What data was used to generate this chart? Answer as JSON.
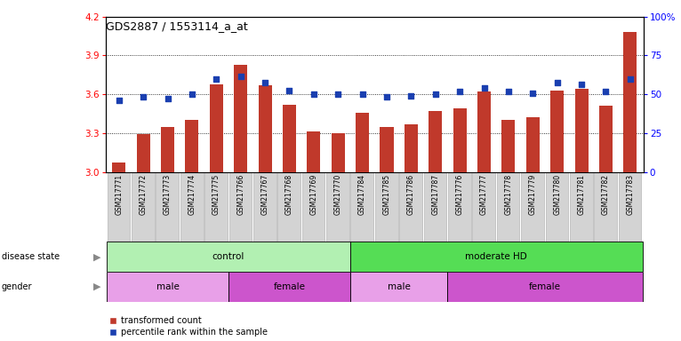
{
  "title": "GDS2887 / 1553114_a_at",
  "samples": [
    "GSM217771",
    "GSM217772",
    "GSM217773",
    "GSM217774",
    "GSM217775",
    "GSM217766",
    "GSM217767",
    "GSM217768",
    "GSM217769",
    "GSM217770",
    "GSM217784",
    "GSM217785",
    "GSM217786",
    "GSM217787",
    "GSM217776",
    "GSM217777",
    "GSM217778",
    "GSM217779",
    "GSM217780",
    "GSM217781",
    "GSM217782",
    "GSM217783"
  ],
  "bar_values": [
    3.07,
    3.29,
    3.35,
    3.4,
    3.68,
    3.83,
    3.67,
    3.52,
    3.31,
    3.3,
    3.46,
    3.35,
    3.37,
    3.47,
    3.49,
    3.62,
    3.4,
    3.42,
    3.63,
    3.64,
    3.51,
    4.08
  ],
  "blue_values": [
    3.55,
    3.58,
    3.57,
    3.6,
    3.72,
    3.74,
    3.69,
    3.63,
    3.6,
    3.6,
    3.6,
    3.58,
    3.59,
    3.6,
    3.62,
    3.65,
    3.62,
    3.61,
    3.69,
    3.68,
    3.62,
    3.72
  ],
  "ylim_left": [
    3.0,
    4.2
  ],
  "ylim_right": [
    0,
    100
  ],
  "yticks_left": [
    3.0,
    3.3,
    3.6,
    3.9,
    4.2
  ],
  "yticks_right": [
    0,
    25,
    50,
    75,
    100
  ],
  "ytick_labels_right": [
    "0",
    "25",
    "50",
    "75",
    "100%"
  ],
  "bar_color": "#c0392b",
  "blue_color": "#1a3fb0",
  "bar_base": 3.0,
  "grid_lines": [
    3.3,
    3.6,
    3.9
  ],
  "disease_state_groups": [
    {
      "label": "control",
      "start": 0,
      "end": 10,
      "color": "#b2f0b2"
    },
    {
      "label": "moderate HD",
      "start": 10,
      "end": 22,
      "color": "#55dd55"
    }
  ],
  "gender_groups": [
    {
      "label": "male",
      "start": 0,
      "end": 5,
      "color": "#e8a0e8"
    },
    {
      "label": "female",
      "start": 5,
      "end": 10,
      "color": "#cc55cc"
    },
    {
      "label": "male",
      "start": 10,
      "end": 14,
      "color": "#e8a0e8"
    },
    {
      "label": "female",
      "start": 14,
      "end": 22,
      "color": "#cc55cc"
    }
  ],
  "disease_state_label": "disease state",
  "gender_label": "gender",
  "legend_labels": [
    "transformed count",
    "percentile rank within the sample"
  ],
  "legend_colors": [
    "#c0392b",
    "#1a3fb0"
  ]
}
